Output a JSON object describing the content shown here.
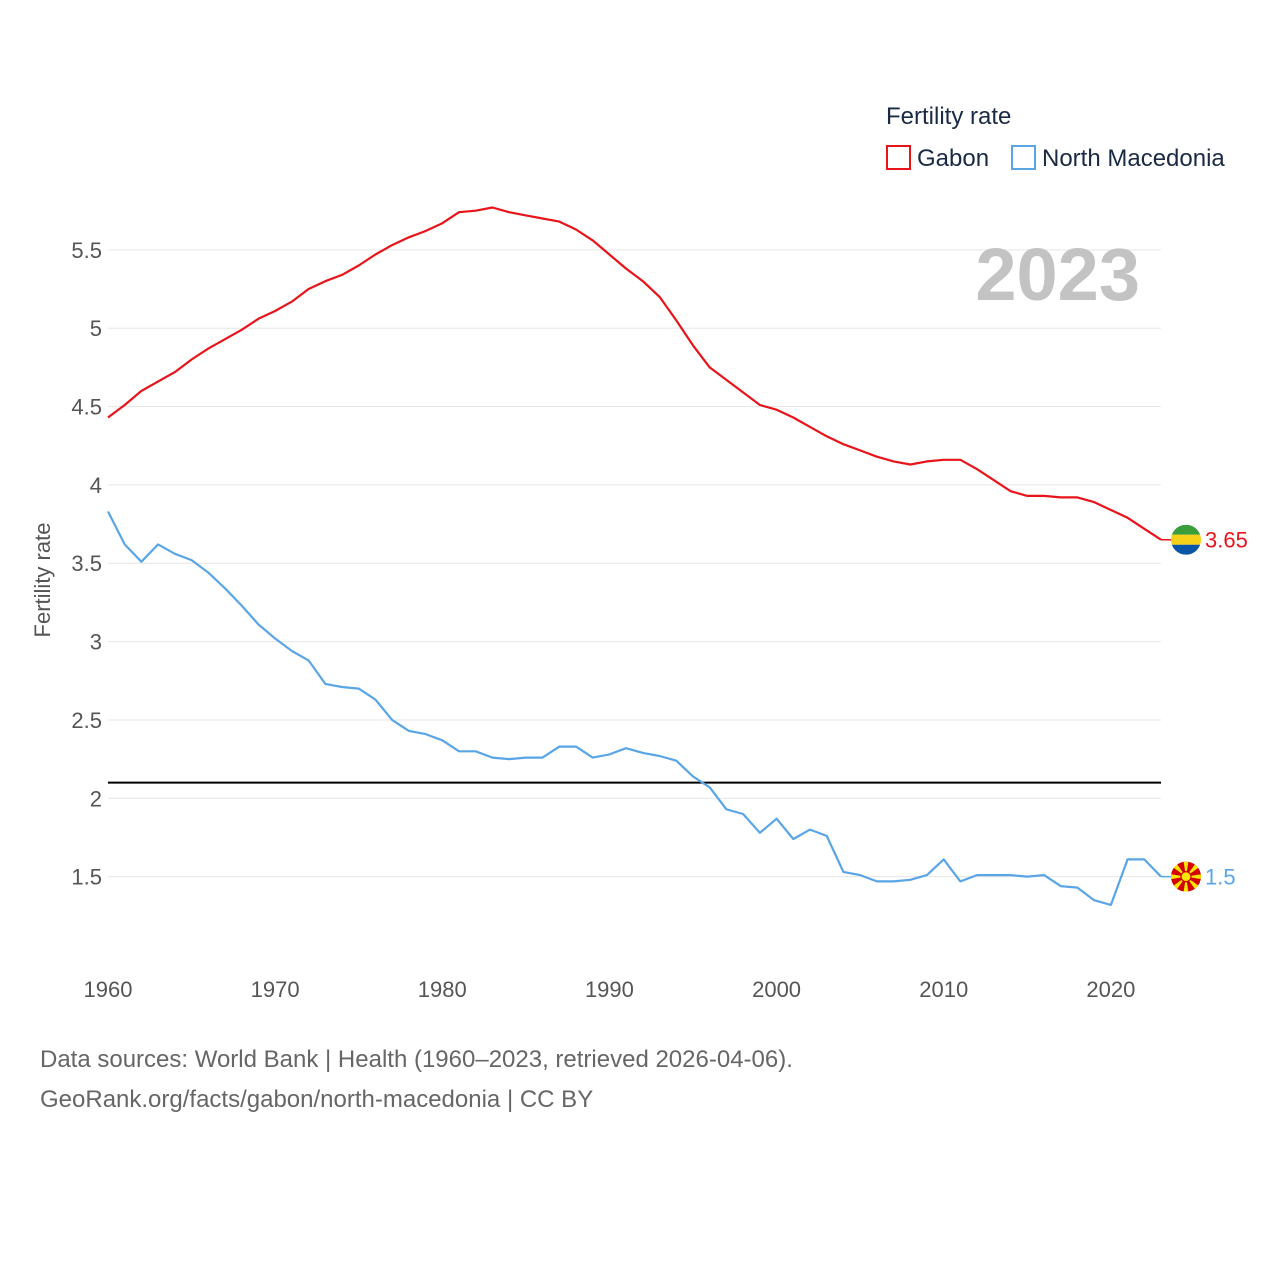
{
  "chart_data": {
    "type": "line",
    "ylabel": "Fertility rate",
    "year_display": "2023",
    "x_ticks": [
      "1960",
      "1970",
      "1980",
      "1990",
      "2000",
      "2010",
      "2020"
    ],
    "y_ticks": [
      "1.5",
      "2",
      "2.5",
      "3",
      "3.5",
      "4",
      "4.5",
      "5",
      "5.5"
    ],
    "xlim": [
      1960,
      2023
    ],
    "ylim": [
      1.0,
      5.85
    ],
    "legend": {
      "title": "Fertility rate",
      "position": "top-right"
    },
    "reference_line": {
      "value": 2.1,
      "color": "#000000"
    },
    "x": [
      1960,
      1961,
      1962,
      1963,
      1964,
      1965,
      1966,
      1967,
      1968,
      1969,
      1970,
      1971,
      1972,
      1973,
      1974,
      1975,
      1976,
      1977,
      1978,
      1979,
      1980,
      1981,
      1982,
      1983,
      1984,
      1985,
      1986,
      1987,
      1988,
      1989,
      1990,
      1991,
      1992,
      1993,
      1994,
      1995,
      1996,
      1997,
      1998,
      1999,
      2000,
      2001,
      2002,
      2003,
      2004,
      2005,
      2006,
      2007,
      2008,
      2009,
      2010,
      2011,
      2012,
      2013,
      2014,
      2015,
      2016,
      2017,
      2018,
      2019,
      2020,
      2021,
      2022,
      2023
    ],
    "series": [
      {
        "name": "Gabon",
        "color": "#e8141a",
        "end_label": "3.65",
        "values": [
          4.43,
          4.51,
          4.6,
          4.66,
          4.72,
          4.8,
          4.87,
          4.93,
          4.99,
          5.06,
          5.11,
          5.17,
          5.25,
          5.3,
          5.34,
          5.4,
          5.47,
          5.53,
          5.58,
          5.62,
          5.67,
          5.74,
          5.75,
          5.77,
          5.74,
          5.72,
          5.7,
          5.68,
          5.63,
          5.56,
          5.47,
          5.38,
          5.3,
          5.2,
          5.05,
          4.89,
          4.75,
          4.67,
          4.59,
          4.51,
          4.48,
          4.43,
          4.37,
          4.31,
          4.26,
          4.22,
          4.18,
          4.15,
          4.13,
          4.15,
          4.16,
          4.16,
          4.1,
          4.03,
          3.96,
          3.93,
          3.93,
          3.92,
          3.92,
          3.89,
          3.84,
          3.79,
          3.72,
          3.65
        ]
      },
      {
        "name": "North Macedonia",
        "color": "#5aa5e6",
        "end_label": "1.5",
        "values": [
          3.83,
          3.62,
          3.51,
          3.62,
          3.56,
          3.52,
          3.44,
          3.34,
          3.23,
          3.11,
          3.02,
          2.94,
          2.88,
          2.73,
          2.71,
          2.7,
          2.63,
          2.5,
          2.43,
          2.41,
          2.37,
          2.3,
          2.3,
          2.26,
          2.25,
          2.26,
          2.26,
          2.33,
          2.33,
          2.26,
          2.28,
          2.32,
          2.29,
          2.27,
          2.24,
          2.14,
          2.07,
          1.93,
          1.9,
          1.78,
          1.87,
          1.74,
          1.8,
          1.76,
          1.53,
          1.51,
          1.47,
          1.47,
          1.48,
          1.51,
          1.61,
          1.47,
          1.51,
          1.51,
          1.51,
          1.5,
          1.51,
          1.44,
          1.43,
          1.35,
          1.32,
          1.61,
          1.61,
          1.5
        ]
      }
    ]
  },
  "footer": {
    "line1": "Data sources: World Bank | Health (1960–2023, retrieved 2026-04-06).",
    "line2": "GeoRank.org/facts/gabon/north-macedonia | CC BY"
  }
}
